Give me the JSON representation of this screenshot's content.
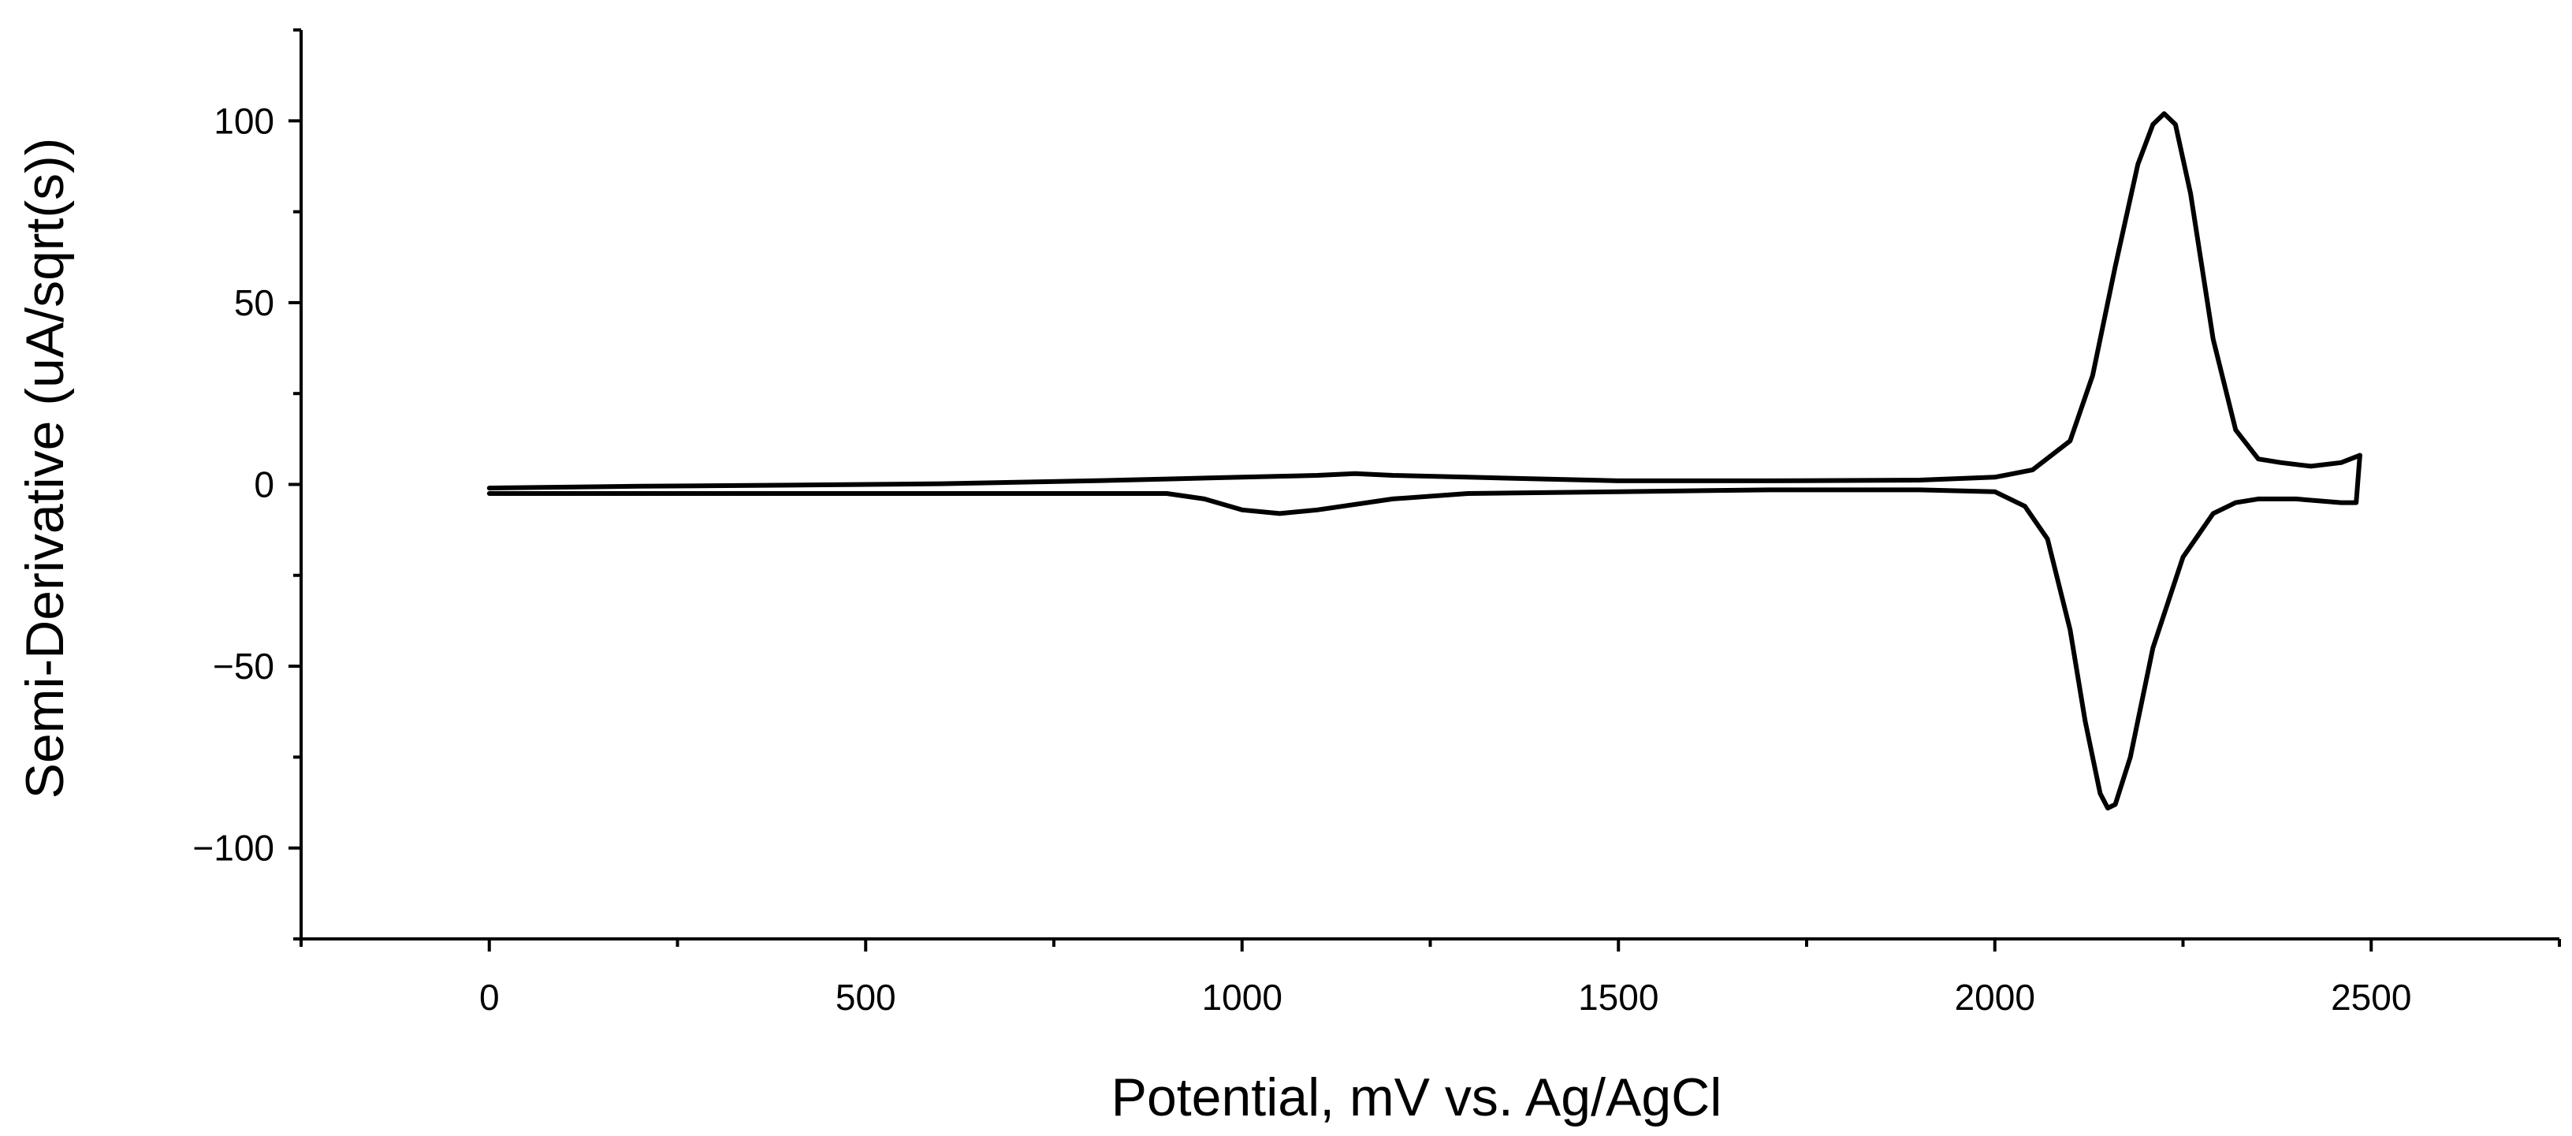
{
  "chart_data": {
    "type": "line",
    "title": "",
    "xlabel": "Potential, mV vs. Ag/AgCl",
    "ylabel": "Semi-Derivative (uA/sqrt(s))",
    "xlim": [
      -250,
      2750
    ],
    "ylim": [
      -125,
      125
    ],
    "xticks": [
      0,
      500,
      1000,
      1500,
      2000,
      2500
    ],
    "xtick_labels": [
      "0",
      "500",
      "1000",
      "1500",
      "2000",
      "2500"
    ],
    "yticks": [
      -100,
      -50,
      0,
      50,
      100
    ],
    "ytick_labels": [
      "−100",
      "−50",
      "0",
      "50",
      "100"
    ],
    "grid": false,
    "legend": "none",
    "line_color": "#000000",
    "series": [
      {
        "x": [
          0,
          200,
          400,
          600,
          800,
          900,
          1000,
          1100,
          1150,
          1200,
          1300,
          1400,
          1500,
          1700,
          1900,
          2000,
          2050,
          2100,
          2130,
          2160,
          2190,
          2210,
          2225,
          2240,
          2260,
          2290,
          2320,
          2350,
          2380,
          2420,
          2460,
          2485
        ],
        "y": [
          -1,
          -0.5,
          -0.2,
          0.2,
          1,
          1.5,
          2,
          2.5,
          3,
          2.5,
          2,
          1.5,
          1,
          1,
          1.2,
          2,
          4,
          12,
          30,
          60,
          88,
          99,
          102,
          99,
          80,
          40,
          15,
          7,
          6,
          5,
          6,
          8
        ]
      },
      {
        "x": [
          2485,
          2480,
          2460,
          2400,
          2350,
          2320,
          2290,
          2250,
          2210,
          2180,
          2160,
          2150,
          2140,
          2120,
          2100,
          2070,
          2040,
          2000,
          1900,
          1700,
          1500,
          1300,
          1200,
          1100,
          1050,
          1000,
          950,
          900,
          700,
          500,
          300,
          0
        ],
        "y": [
          8,
          -5,
          -5,
          -4,
          -4,
          -5,
          -8,
          -20,
          -45,
          -75,
          -88,
          -89,
          -85,
          -65,
          -40,
          -15,
          -6,
          -2,
          -1.5,
          -1.5,
          -2,
          -2.5,
          -4,
          -7,
          -8,
          -7,
          -4,
          -2.5,
          -2.5,
          -2.5,
          -2.5,
          -2.5
        ]
      }
    ]
  }
}
